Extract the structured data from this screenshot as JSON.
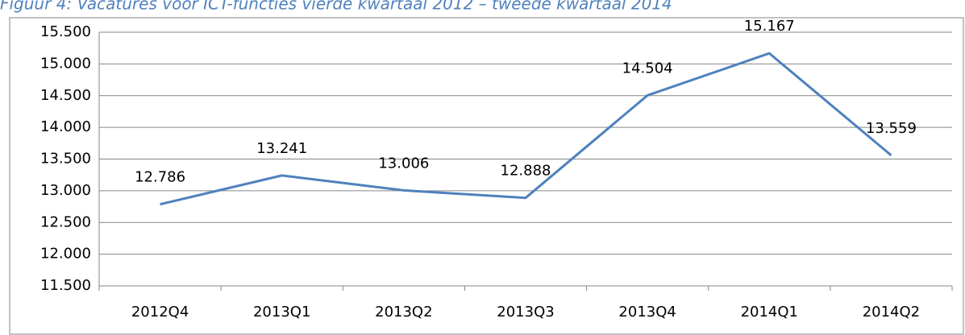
{
  "chart_data": {
    "type": "line",
    "title": "Figuur 4: Vacatures voor ICT-functies vierde kwartaal 2012 – tweede kwartaal 2014",
    "categories": [
      "2012Q4",
      "2013Q1",
      "2013Q2",
      "2013Q3",
      "2013Q4",
      "2014Q1",
      "2014Q2"
    ],
    "series": [
      {
        "name": "Vacatures",
        "color": "#4f81bd",
        "values": [
          12786,
          13241,
          13006,
          12888,
          14504,
          15167,
          13559
        ],
        "value_labels": [
          "12.786",
          "13.241",
          "13.006",
          "12.888",
          "14.504",
          "15.167",
          "13.559"
        ]
      }
    ],
    "ylim": [
      11500,
      15500
    ],
    "yticks": [
      {
        "value": 11500,
        "label": "11.500"
      },
      {
        "value": 12000,
        "label": "12.000"
      },
      {
        "value": 12500,
        "label": "12.500"
      },
      {
        "value": 13000,
        "label": "13.000"
      },
      {
        "value": 13500,
        "label": "13.500"
      },
      {
        "value": 14000,
        "label": "14.000"
      },
      {
        "value": 14500,
        "label": "14.500"
      },
      {
        "value": 15000,
        "label": "15.000"
      },
      {
        "value": 15500,
        "label": "15.500"
      }
    ],
    "grid": true
  }
}
